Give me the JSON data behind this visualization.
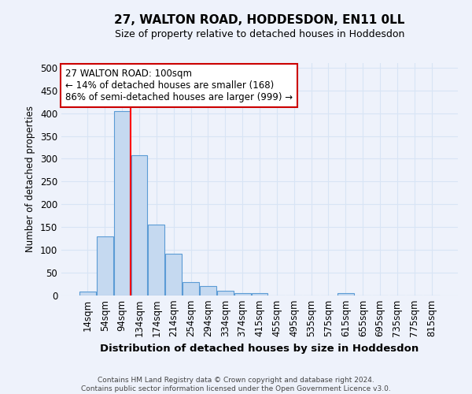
{
  "title1": "27, WALTON ROAD, HODDESDON, EN11 0LL",
  "title2": "Size of property relative to detached houses in Hoddesdon",
  "xlabel": "Distribution of detached houses by size in Hoddesdon",
  "ylabel": "Number of detached properties",
  "bar_color": "#c5d9f0",
  "bar_edge_color": "#5b9bd5",
  "categories": [
    "14sqm",
    "54sqm",
    "94sqm",
    "134sqm",
    "174sqm",
    "214sqm",
    "254sqm",
    "294sqm",
    "334sqm",
    "374sqm",
    "415sqm",
    "455sqm",
    "495sqm",
    "535sqm",
    "575sqm",
    "615sqm",
    "655sqm",
    "695sqm",
    "735sqm",
    "775sqm",
    "815sqm"
  ],
  "values": [
    8,
    130,
    405,
    308,
    155,
    92,
    30,
    20,
    10,
    5,
    5,
    0,
    0,
    0,
    0,
    5,
    0,
    0,
    0,
    0,
    0
  ],
  "ylim": [
    0,
    510
  ],
  "yticks": [
    0,
    50,
    100,
    150,
    200,
    250,
    300,
    350,
    400,
    450,
    500
  ],
  "red_line_x": 2.5,
  "annotation_text": "27 WALTON ROAD: 100sqm\n← 14% of detached houses are smaller (168)\n86% of semi-detached houses are larger (999) →",
  "annotation_box_color": "#ffffff",
  "annotation_box_edge": "#cc0000",
  "footer": "Contains HM Land Registry data © Crown copyright and database right 2024.\nContains public sector information licensed under the Open Government Licence v3.0.",
  "bg_color": "#eef2fb",
  "grid_color": "#d8e4f5"
}
